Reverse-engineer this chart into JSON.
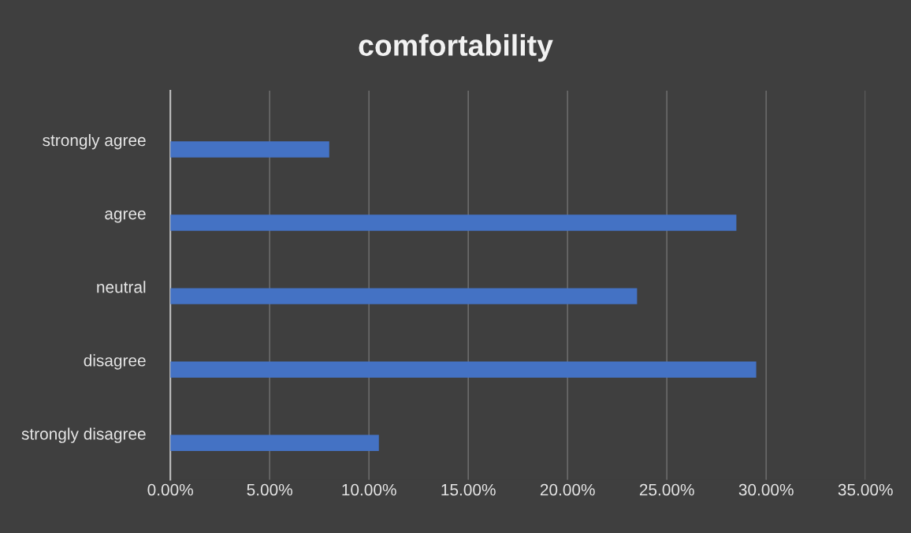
{
  "chart_data": {
    "type": "bar",
    "orientation": "horizontal",
    "title": "comfortability",
    "categories": [
      "strongly agree",
      "agree",
      "neutral",
      "disagree",
      "strongly disagree"
    ],
    "values": [
      8.0,
      28.5,
      23.5,
      29.5,
      10.5
    ],
    "color": "#4472c4",
    "xlim": [
      0,
      35
    ],
    "xticks": [
      {
        "value": 0,
        "label": "0.00%"
      },
      {
        "value": 5,
        "label": "5.00%"
      },
      {
        "value": 10,
        "label": "10.00%"
      },
      {
        "value": 15,
        "label": "15.00%"
      },
      {
        "value": 20,
        "label": "20.00%"
      },
      {
        "value": 25,
        "label": "25.00%"
      },
      {
        "value": 30,
        "label": "30.00%"
      },
      {
        "value": 35,
        "label": "35.00%"
      }
    ],
    "grid": "x",
    "legend": false
  }
}
